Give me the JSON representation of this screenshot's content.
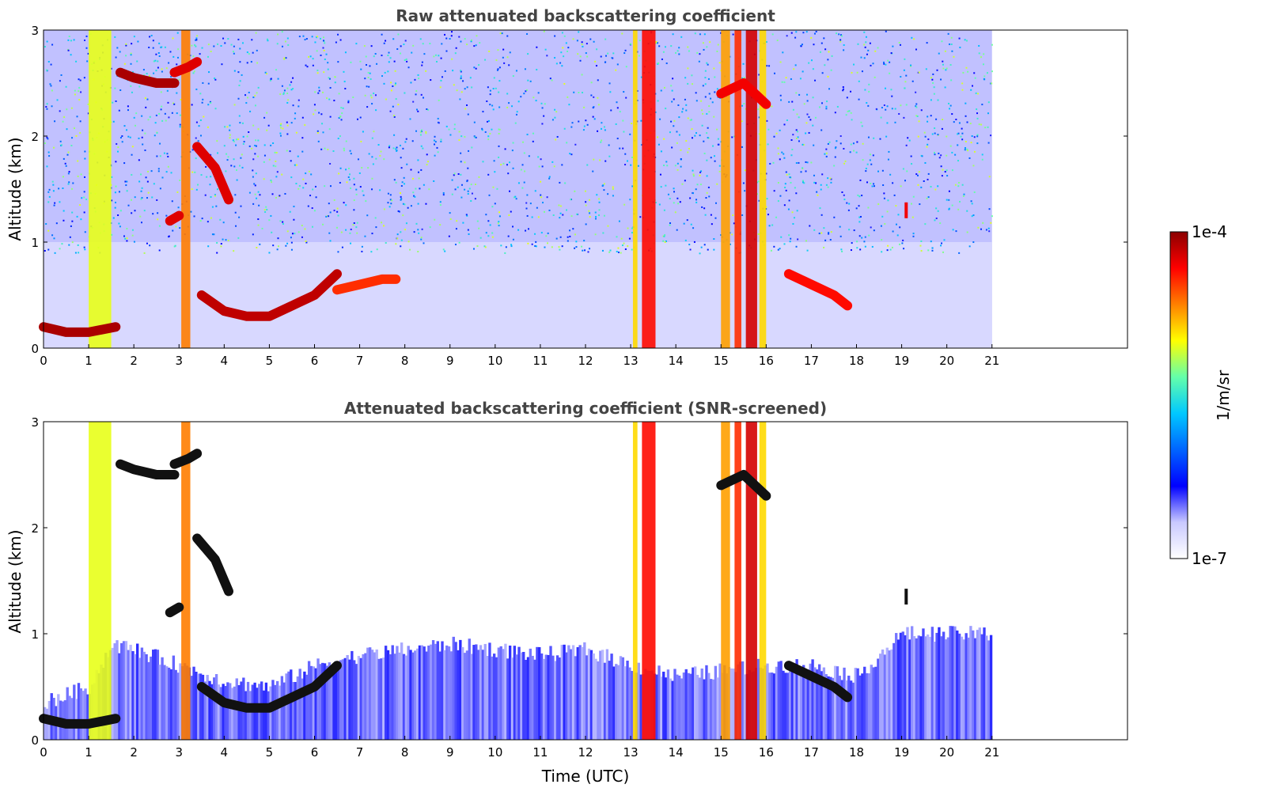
{
  "chart_data": [
    {
      "type": "heatmap",
      "title": "Raw attenuated backscattering coefficient",
      "xlabel": "",
      "ylabel": "Altitude (km)",
      "xlim": [
        0,
        24
      ],
      "ylim": [
        0,
        3
      ],
      "xticks": [
        "0",
        "1",
        "2",
        "3",
        "4",
        "5",
        "6",
        "7",
        "8",
        "9",
        "10",
        "11",
        "12",
        "13",
        "14",
        "15",
        "16",
        "17",
        "18",
        "19",
        "20",
        "21"
      ],
      "yticks": [
        "0",
        "1",
        "2",
        "3"
      ],
      "data_x_range": [
        0,
        21
      ],
      "grid": false,
      "layers": [
        {
          "name": "noise_floor",
          "x_start": 0,
          "x_end": 21,
          "y_top": 3.0,
          "level": 0.18
        },
        {
          "name": "boundary_layer",
          "x_start": 0,
          "x_end": 21,
          "y_top": 1.0,
          "level": 0.08
        }
      ],
      "cloud_segments": [
        {
          "x": [
            0.0,
            0.5,
            1.0,
            1.6
          ],
          "y": [
            0.2,
            0.15,
            0.15,
            0.2
          ],
          "level": 0.97
        },
        {
          "x": [
            1.7,
            2.0,
            2.5,
            2.9
          ],
          "y": [
            2.6,
            2.55,
            2.5,
            2.5
          ],
          "level": 0.97
        },
        {
          "x": [
            2.9,
            3.2,
            3.4
          ],
          "y": [
            2.6,
            2.65,
            2.7
          ],
          "level": 0.92
        },
        {
          "x": [
            2.8,
            3.0
          ],
          "y": [
            1.2,
            1.25
          ],
          "level": 0.92
        },
        {
          "x": [
            3.4,
            3.8,
            4.1
          ],
          "y": [
            1.9,
            1.7,
            1.4
          ],
          "level": 0.92
        },
        {
          "x": [
            3.5,
            4.0,
            4.5,
            5.0,
            5.5,
            6.0,
            6.5
          ],
          "y": [
            0.5,
            0.35,
            0.3,
            0.3,
            0.4,
            0.5,
            0.7
          ],
          "level": 0.95
        },
        {
          "x": [
            6.5,
            7.0,
            7.5,
            7.8
          ],
          "y": [
            0.55,
            0.6,
            0.65,
            0.65
          ],
          "level": 0.85
        },
        {
          "x": [
            16.5,
            17.0,
            17.5,
            17.8
          ],
          "y": [
            0.7,
            0.6,
            0.5,
            0.4
          ],
          "level": 0.88
        },
        {
          "x": [
            15.0,
            15.5,
            16.0
          ],
          "y": [
            2.4,
            2.5,
            2.3
          ],
          "level": 0.9
        },
        {
          "x": [
            19.1
          ],
          "y": [
            1.3
          ],
          "level": 0.9
        }
      ],
      "precip_columns": [
        {
          "x_start": 1.0,
          "x_end": 1.5,
          "level": 0.65
        },
        {
          "x_start": 3.05,
          "x_end": 3.25,
          "level": 0.78
        },
        {
          "x_start": 13.05,
          "x_end": 13.15,
          "level": 0.7
        },
        {
          "x_start": 13.25,
          "x_end": 13.55,
          "level": 0.88
        },
        {
          "x_start": 15.0,
          "x_end": 15.2,
          "level": 0.75
        },
        {
          "x_start": 15.3,
          "x_end": 15.45,
          "level": 0.85
        },
        {
          "x_start": 15.55,
          "x_end": 15.8,
          "level": 0.93
        },
        {
          "x_start": 15.85,
          "x_end": 16.0,
          "level": 0.7
        }
      ],
      "colorbar": {
        "min_label": "1e-7",
        "max_label": "1e-4",
        "unit": "1/m/sr",
        "scale": "log"
      },
      "colors": {
        "cmap": [
          "#ffffff",
          "#c9c9ff",
          "#0000ff",
          "#0064ff",
          "#00c8ff",
          "#64ffaa",
          "#ffff00",
          "#ff8000",
          "#ff0000",
          "#8b0000"
        ]
      }
    },
    {
      "type": "heatmap",
      "title": "Attenuated backscattering coefficient (SNR-screened)",
      "xlabel": "Time (UTC)",
      "ylabel": "Altitude (km)",
      "xlim": [
        0,
        24
      ],
      "ylim": [
        0,
        3
      ],
      "xticks": [
        "0",
        "1",
        "2",
        "3",
        "4",
        "5",
        "6",
        "7",
        "8",
        "9",
        "10",
        "11",
        "12",
        "13",
        "14",
        "15",
        "16",
        "17",
        "18",
        "19",
        "20",
        "21"
      ],
      "yticks": [
        "0",
        "1",
        "2",
        "3"
      ],
      "data_x_range": [
        0,
        21
      ],
      "grid": false,
      "screened_top_profile": {
        "x": [
          0,
          1,
          1.5,
          2,
          3,
          4,
          5,
          6,
          7,
          8,
          9,
          10,
          11,
          12,
          13,
          14,
          15,
          16,
          17,
          18,
          19,
          20,
          21
        ],
        "y": [
          0.35,
          0.5,
          0.9,
          0.85,
          0.7,
          0.55,
          0.5,
          0.7,
          0.8,
          0.85,
          0.9,
          0.85,
          0.8,
          0.85,
          0.7,
          0.6,
          0.65,
          0.7,
          0.7,
          0.6,
          1.0,
          1.0,
          1.0
        ],
        "level": 0.12
      },
      "cloud_segments": [
        {
          "x": [
            0.0,
            0.5,
            1.0,
            1.6
          ],
          "y": [
            0.2,
            0.15,
            0.15,
            0.2
          ],
          "level": 1.0
        },
        {
          "x": [
            1.7,
            2.0,
            2.5,
            2.9
          ],
          "y": [
            2.6,
            2.55,
            2.5,
            2.5
          ],
          "level": 1.0
        },
        {
          "x": [
            2.9,
            3.2,
            3.4
          ],
          "y": [
            2.6,
            2.65,
            2.7
          ],
          "level": 1.0
        },
        {
          "x": [
            2.8,
            3.0
          ],
          "y": [
            1.2,
            1.25
          ],
          "level": 1.0
        },
        {
          "x": [
            3.4,
            3.8,
            4.1
          ],
          "y": [
            1.9,
            1.7,
            1.4
          ],
          "level": 1.0
        },
        {
          "x": [
            3.5,
            4.0,
            4.5,
            5.0,
            5.5,
            6.0,
            6.5
          ],
          "y": [
            0.5,
            0.35,
            0.3,
            0.3,
            0.4,
            0.5,
            0.7
          ],
          "level": 1.0
        },
        {
          "x": [
            16.5,
            17.0,
            17.5,
            17.8
          ],
          "y": [
            0.7,
            0.6,
            0.5,
            0.4
          ],
          "level": 1.0
        },
        {
          "x": [
            15.0,
            15.5,
            16.0
          ],
          "y": [
            2.4,
            2.5,
            2.3
          ],
          "level": 1.0
        },
        {
          "x": [
            19.1
          ],
          "y": [
            1.35
          ],
          "level": 1.0
        }
      ],
      "precip_columns": [
        {
          "x_start": 1.0,
          "x_end": 1.5,
          "level": 0.65
        },
        {
          "x_start": 3.05,
          "x_end": 3.25,
          "level": 0.78
        },
        {
          "x_start": 13.05,
          "x_end": 13.15,
          "level": 0.7
        },
        {
          "x_start": 13.25,
          "x_end": 13.55,
          "level": 0.88
        },
        {
          "x_start": 15.0,
          "x_end": 15.2,
          "level": 0.75
        },
        {
          "x_start": 15.3,
          "x_end": 15.45,
          "level": 0.85
        },
        {
          "x_start": 15.55,
          "x_end": 15.8,
          "level": 0.93
        },
        {
          "x_start": 15.85,
          "x_end": 16.0,
          "level": 0.7
        }
      ]
    }
  ]
}
